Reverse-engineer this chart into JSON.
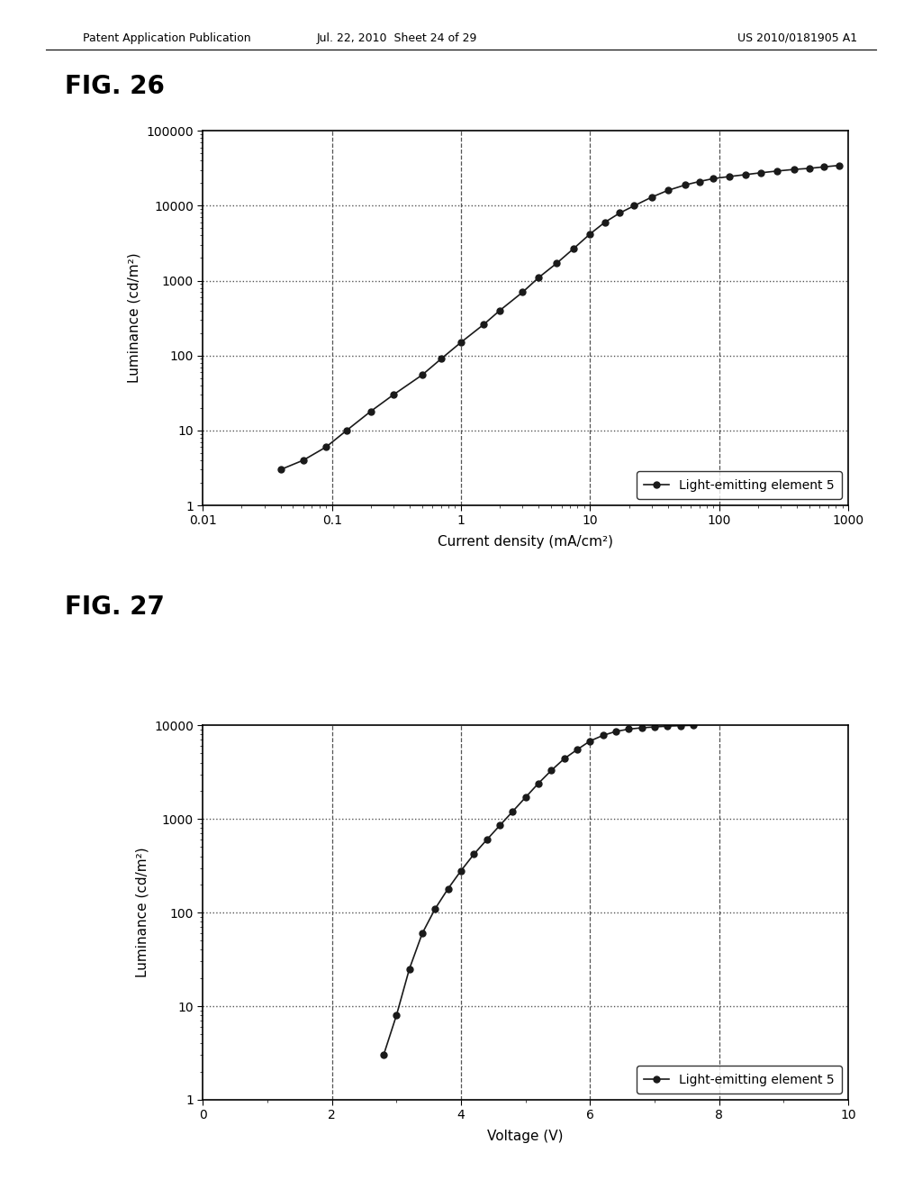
{
  "fig26_title": "FIG. 26",
  "fig27_title": "FIG. 27",
  "header_left": "Patent Application Publication",
  "header_mid": "Jul. 22, 2010  Sheet 24 of 29",
  "header_right": "US 2010/0181905 A1",
  "fig26_xlabel": "Current density (mA/cm²)",
  "fig26_ylabel": "Luminance (cd/m²)",
  "fig26_xlim": [
    0.01,
    1000
  ],
  "fig26_ylim": [
    1,
    100000
  ],
  "fig26_legend": "Light-emitting element 5",
  "fig26_x": [
    0.04,
    0.06,
    0.09,
    0.13,
    0.2,
    0.3,
    0.5,
    0.7,
    1.0,
    1.5,
    2.0,
    3.0,
    4.0,
    5.5,
    7.5,
    10,
    13,
    17,
    22,
    30,
    40,
    55,
    70,
    90,
    120,
    160,
    210,
    280,
    380,
    500,
    650,
    850
  ],
  "fig26_y": [
    3,
    4,
    6,
    10,
    18,
    30,
    55,
    90,
    150,
    260,
    400,
    700,
    1100,
    1700,
    2700,
    4200,
    6000,
    8000,
    10000,
    13000,
    16000,
    19000,
    21000,
    23000,
    24500,
    26000,
    27500,
    29000,
    30500,
    31500,
    33000,
    34500
  ],
  "fig27_xlabel": "Voltage (V)",
  "fig27_ylabel": "Luminance (cd/m²)",
  "fig27_xlim": [
    0,
    10
  ],
  "fig27_ylim": [
    1,
    10000
  ],
  "fig27_legend": "Light-emitting element 5",
  "fig27_x": [
    2.8,
    3.0,
    3.2,
    3.4,
    3.6,
    3.8,
    4.0,
    4.2,
    4.4,
    4.6,
    4.8,
    5.0,
    5.2,
    5.4,
    5.6,
    5.8,
    6.0,
    6.2,
    6.4,
    6.6,
    6.8,
    7.0,
    7.2,
    7.4,
    7.6
  ],
  "fig27_y": [
    3,
    8,
    25,
    60,
    110,
    180,
    280,
    420,
    600,
    850,
    1200,
    1700,
    2400,
    3300,
    4400,
    5500,
    6800,
    7800,
    8600,
    9100,
    9400,
    9600,
    9800,
    9900,
    10000
  ],
  "bg_color": "#ffffff",
  "line_color": "#1a1a1a",
  "marker_color": "#1a1a1a",
  "grid_dotted_color": "#555555",
  "grid_dashed_color": "#555555",
  "marker_size": 5,
  "line_width": 1.2
}
